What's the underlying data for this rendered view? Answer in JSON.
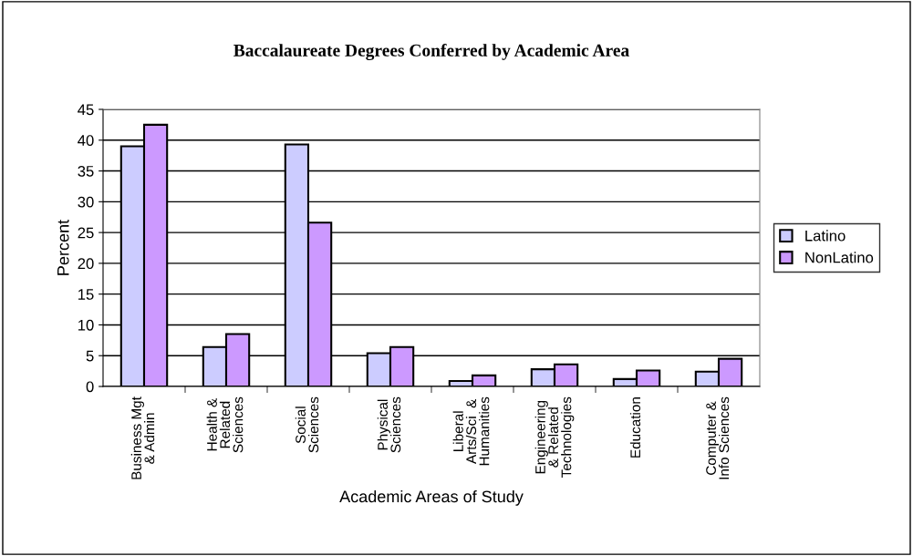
{
  "chart_data": {
    "type": "bar",
    "title": "Baccalaureate Degrees Conferred by Academic Area",
    "xlabel": "Academic Areas of Study",
    "ylabel": "Percent",
    "categories": [
      "Business Mgt\n& Admin",
      "Health &\nRelated\nSciences",
      "Social\nSciences",
      "Physical\nSciences",
      "Liberal\nArts/Sci  &\nHumanities",
      "Engineering\n& Related\nTechnologies",
      "Education",
      "Computer &\nInfo Sciences"
    ],
    "series": [
      {
        "name": "Latino",
        "color": "#ccccff",
        "values": [
          39,
          6.4,
          39.3,
          5.4,
          0.9,
          2.8,
          1.2,
          2.4
        ]
      },
      {
        "name": "NonLatino",
        "color": "#cc99ff",
        "values": [
          42.5,
          8.5,
          26.6,
          6.4,
          1.8,
          3.6,
          2.6,
          4.5
        ]
      }
    ],
    "ylim": [
      0,
      45
    ],
    "yticks": [
      0,
      5,
      10,
      15,
      20,
      25,
      30,
      35,
      40,
      45
    ],
    "grid": "y",
    "legend": "right"
  }
}
